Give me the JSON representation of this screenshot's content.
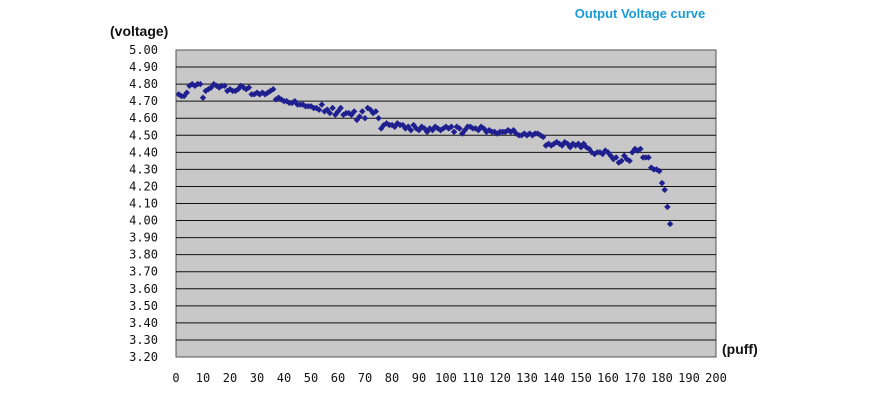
{
  "chart_data": {
    "type": "scatter",
    "title": "Output Voltage curve",
    "ylabel": "(voltage)",
    "xlabel": "(puff)",
    "xlim": [
      0,
      200
    ],
    "ylim": [
      3.2,
      5.0
    ],
    "xticks": [
      "0",
      "10",
      "20",
      "30",
      "40",
      "50",
      "60",
      "70",
      "80",
      "90",
      "100",
      "110",
      "120",
      "130",
      "140",
      "150",
      "160",
      "170",
      "180",
      "190",
      "200"
    ],
    "yticks": [
      "5.00",
      "4.90",
      "4.80",
      "4.70",
      "4.60",
      "4.50",
      "4.40",
      "4.30",
      "4.20",
      "4.10",
      "4.00",
      "3.90",
      "3.80",
      "3.70",
      "3.60",
      "3.50",
      "3.40",
      "3.30",
      "3.20"
    ],
    "grid": true,
    "marker_color": "#1f1f8f",
    "plot_background": "#c8c8c8",
    "series": [
      {
        "points": [
          [
            1,
            4.74
          ],
          [
            2,
            4.73
          ],
          [
            3,
            4.73
          ],
          [
            4,
            4.75
          ],
          [
            5,
            4.79
          ],
          [
            6,
            4.8
          ],
          [
            7,
            4.79
          ],
          [
            8,
            4.8
          ],
          [
            9,
            4.8
          ],
          [
            10,
            4.72
          ],
          [
            11,
            4.76
          ],
          [
            12,
            4.77
          ],
          [
            13,
            4.78
          ],
          [
            14,
            4.8
          ],
          [
            15,
            4.79
          ],
          [
            16,
            4.78
          ],
          [
            17,
            4.79
          ],
          [
            18,
            4.79
          ],
          [
            19,
            4.76
          ],
          [
            20,
            4.77
          ],
          [
            21,
            4.76
          ],
          [
            22,
            4.76
          ],
          [
            23,
            4.77
          ],
          [
            24,
            4.79
          ],
          [
            25,
            4.78
          ],
          [
            26,
            4.77
          ],
          [
            27,
            4.78
          ],
          [
            28,
            4.74
          ],
          [
            29,
            4.74
          ],
          [
            30,
            4.75
          ],
          [
            31,
            4.74
          ],
          [
            32,
            4.75
          ],
          [
            33,
            4.74
          ],
          [
            34,
            4.75
          ],
          [
            35,
            4.76
          ],
          [
            36,
            4.77
          ],
          [
            37,
            4.71
          ],
          [
            38,
            4.72
          ],
          [
            39,
            4.71
          ],
          [
            40,
            4.7
          ],
          [
            41,
            4.7
          ],
          [
            42,
            4.69
          ],
          [
            43,
            4.69
          ],
          [
            44,
            4.7
          ],
          [
            45,
            4.68
          ],
          [
            46,
            4.68
          ],
          [
            47,
            4.68
          ],
          [
            48,
            4.67
          ],
          [
            49,
            4.67
          ],
          [
            50,
            4.67
          ],
          [
            51,
            4.66
          ],
          [
            52,
            4.66
          ],
          [
            53,
            4.65
          ],
          [
            54,
            4.68
          ],
          [
            55,
            4.64
          ],
          [
            56,
            4.65
          ],
          [
            57,
            4.63
          ],
          [
            58,
            4.66
          ],
          [
            59,
            4.62
          ],
          [
            60,
            4.64
          ],
          [
            61,
            4.66
          ],
          [
            62,
            4.62
          ],
          [
            63,
            4.63
          ],
          [
            64,
            4.63
          ],
          [
            65,
            4.62
          ],
          [
            66,
            4.64
          ],
          [
            67,
            4.59
          ],
          [
            68,
            4.61
          ],
          [
            69,
            4.64
          ],
          [
            70,
            4.6
          ],
          [
            71,
            4.66
          ],
          [
            72,
            4.65
          ],
          [
            73,
            4.63
          ],
          [
            74,
            4.64
          ],
          [
            75,
            4.6
          ],
          [
            76,
            4.54
          ],
          [
            77,
            4.56
          ],
          [
            78,
            4.57
          ],
          [
            79,
            4.56
          ],
          [
            80,
            4.56
          ],
          [
            81,
            4.55
          ],
          [
            82,
            4.57
          ],
          [
            83,
            4.56
          ],
          [
            84,
            4.56
          ],
          [
            85,
            4.54
          ],
          [
            86,
            4.55
          ],
          [
            87,
            4.53
          ],
          [
            88,
            4.56
          ],
          [
            89,
            4.54
          ],
          [
            90,
            4.53
          ],
          [
            91,
            4.55
          ],
          [
            92,
            4.54
          ],
          [
            93,
            4.52
          ],
          [
            94,
            4.54
          ],
          [
            95,
            4.53
          ],
          [
            96,
            4.55
          ],
          [
            97,
            4.54
          ],
          [
            98,
            4.53
          ],
          [
            99,
            4.54
          ],
          [
            100,
            4.55
          ],
          [
            101,
            4.54
          ],
          [
            102,
            4.55
          ],
          [
            103,
            4.52
          ],
          [
            104,
            4.55
          ],
          [
            105,
            4.54
          ],
          [
            106,
            4.51
          ],
          [
            107,
            4.53
          ],
          [
            108,
            4.55
          ],
          [
            109,
            4.55
          ],
          [
            110,
            4.54
          ],
          [
            111,
            4.54
          ],
          [
            112,
            4.53
          ],
          [
            113,
            4.55
          ],
          [
            114,
            4.54
          ],
          [
            115,
            4.52
          ],
          [
            116,
            4.53
          ],
          [
            117,
            4.52
          ],
          [
            118,
            4.52
          ],
          [
            119,
            4.51
          ],
          [
            120,
            4.52
          ],
          [
            121,
            4.52
          ],
          [
            122,
            4.52
          ],
          [
            123,
            4.53
          ],
          [
            124,
            4.52
          ],
          [
            125,
            4.53
          ],
          [
            126,
            4.51
          ],
          [
            127,
            4.5
          ],
          [
            128,
            4.5
          ],
          [
            129,
            4.51
          ],
          [
            130,
            4.5
          ],
          [
            131,
            4.51
          ],
          [
            132,
            4.5
          ],
          [
            133,
            4.51
          ],
          [
            134,
            4.51
          ],
          [
            135,
            4.5
          ],
          [
            136,
            4.49
          ],
          [
            137,
            4.44
          ],
          [
            138,
            4.45
          ],
          [
            139,
            4.44
          ],
          [
            140,
            4.45
          ],
          [
            141,
            4.46
          ],
          [
            142,
            4.45
          ],
          [
            143,
            4.44
          ],
          [
            144,
            4.46
          ],
          [
            145,
            4.45
          ],
          [
            146,
            4.43
          ],
          [
            147,
            4.45
          ],
          [
            148,
            4.44
          ],
          [
            149,
            4.45
          ],
          [
            150,
            4.43
          ],
          [
            151,
            4.45
          ],
          [
            152,
            4.43
          ],
          [
            153,
            4.42
          ],
          [
            154,
            4.4
          ],
          [
            155,
            4.39
          ],
          [
            156,
            4.4
          ],
          [
            157,
            4.4
          ],
          [
            158,
            4.39
          ],
          [
            159,
            4.41
          ],
          [
            160,
            4.4
          ],
          [
            161,
            4.38
          ],
          [
            162,
            4.36
          ],
          [
            163,
            4.37
          ],
          [
            164,
            4.34
          ],
          [
            165,
            4.35
          ],
          [
            166,
            4.38
          ],
          [
            167,
            4.36
          ],
          [
            168,
            4.35
          ],
          [
            169,
            4.4
          ],
          [
            170,
            4.42
          ],
          [
            171,
            4.41
          ],
          [
            172,
            4.42
          ],
          [
            173,
            4.37
          ],
          [
            174,
            4.37
          ],
          [
            175,
            4.37
          ],
          [
            176,
            4.31
          ],
          [
            177,
            4.3
          ],
          [
            178,
            4.3
          ],
          [
            179,
            4.29
          ],
          [
            180,
            4.22
          ],
          [
            181,
            4.18
          ],
          [
            182,
            4.08
          ],
          [
            183,
            3.98
          ]
        ]
      }
    ]
  }
}
